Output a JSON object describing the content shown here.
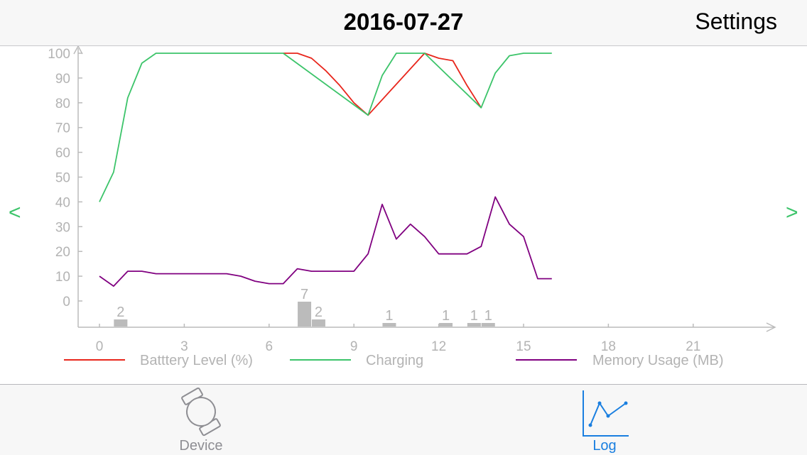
{
  "nav": {
    "title": "2016-07-27",
    "settings_label": "Settings"
  },
  "colors": {
    "battery": "#e8261c",
    "charging": "#3cc46a",
    "memory": "#800080",
    "bars": "#bbbbbb",
    "axis": "#bbbbbb",
    "accent": "#1a7fe0",
    "arrow": "#3cc46a"
  },
  "arrows": {
    "prev": "<",
    "next": ">"
  },
  "chart_data": {
    "type": "line",
    "x_ticks": [
      "0",
      "3",
      "6",
      "9",
      "12",
      "15",
      "18",
      "21"
    ],
    "y_ticks": [
      "100",
      "90",
      "80",
      "70",
      "60",
      "50",
      "40",
      "30",
      "20",
      "10",
      "0"
    ],
    "xlim": [
      0,
      23.5
    ],
    "ylim": [
      0,
      100
    ],
    "grid": false,
    "legend_position": "bottom",
    "series": [
      {
        "name": "Batttery Level (%)",
        "color": "#e8261c",
        "points": [
          [
            6.5,
            100
          ],
          [
            7.0,
            100
          ],
          [
            7.5,
            98
          ],
          [
            8.0,
            93
          ],
          [
            8.5,
            87
          ],
          [
            9.0,
            80
          ],
          [
            9.5,
            75
          ],
          [
            11.5,
            100
          ],
          [
            12.0,
            98
          ],
          [
            12.5,
            97
          ],
          [
            13.0,
            87
          ],
          [
            13.5,
            78
          ]
        ]
      },
      {
        "name": "Charging",
        "color": "#3cc46a",
        "points": [
          [
            0.0,
            40
          ],
          [
            0.5,
            52
          ],
          [
            1.0,
            82
          ],
          [
            1.5,
            96
          ],
          [
            2.0,
            100
          ],
          [
            6.5,
            100
          ],
          [
            9.5,
            75
          ],
          [
            10.0,
            91
          ],
          [
            10.5,
            100
          ],
          [
            11.5,
            100
          ],
          [
            13.5,
            78
          ],
          [
            14.0,
            92
          ],
          [
            14.5,
            99
          ],
          [
            15.0,
            100
          ],
          [
            16.0,
            100
          ]
        ]
      },
      {
        "name": "Memory Usage (MB)",
        "color": "#800080",
        "points": [
          [
            0.0,
            10
          ],
          [
            0.5,
            6
          ],
          [
            1.0,
            12
          ],
          [
            1.5,
            12
          ],
          [
            2.0,
            11
          ],
          [
            4.5,
            11
          ],
          [
            5.0,
            10
          ],
          [
            5.5,
            8
          ],
          [
            6.0,
            7
          ],
          [
            6.5,
            7
          ],
          [
            7.0,
            13
          ],
          [
            7.5,
            12
          ],
          [
            8.0,
            12
          ],
          [
            9.0,
            12
          ],
          [
            9.5,
            19
          ],
          [
            10.0,
            39
          ],
          [
            10.5,
            25
          ],
          [
            11.0,
            31
          ],
          [
            11.5,
            26
          ],
          [
            12.0,
            19
          ],
          [
            12.5,
            19
          ],
          [
            13.0,
            19
          ],
          [
            13.5,
            22
          ],
          [
            14.0,
            42
          ],
          [
            14.5,
            31
          ],
          [
            15.0,
            26
          ],
          [
            15.5,
            9
          ],
          [
            16.0,
            9
          ]
        ]
      }
    ],
    "bars": [
      {
        "x": 0.75,
        "value": 2,
        "label": "2"
      },
      {
        "x": 7.25,
        "value": 7,
        "label": "7"
      },
      {
        "x": 7.75,
        "value": 2,
        "label": "2"
      },
      {
        "x": 10.25,
        "value": 1,
        "label": "1"
      },
      {
        "x": 12.25,
        "value": 1,
        "label": "1"
      },
      {
        "x": 13.25,
        "value": 1,
        "label": "1"
      },
      {
        "x": 13.75,
        "value": 1,
        "label": "1"
      }
    ]
  },
  "tabs": [
    {
      "label": "Device",
      "icon": "watch-icon",
      "selected": false
    },
    {
      "label": "Log",
      "icon": "line-chart-icon",
      "selected": true
    }
  ]
}
